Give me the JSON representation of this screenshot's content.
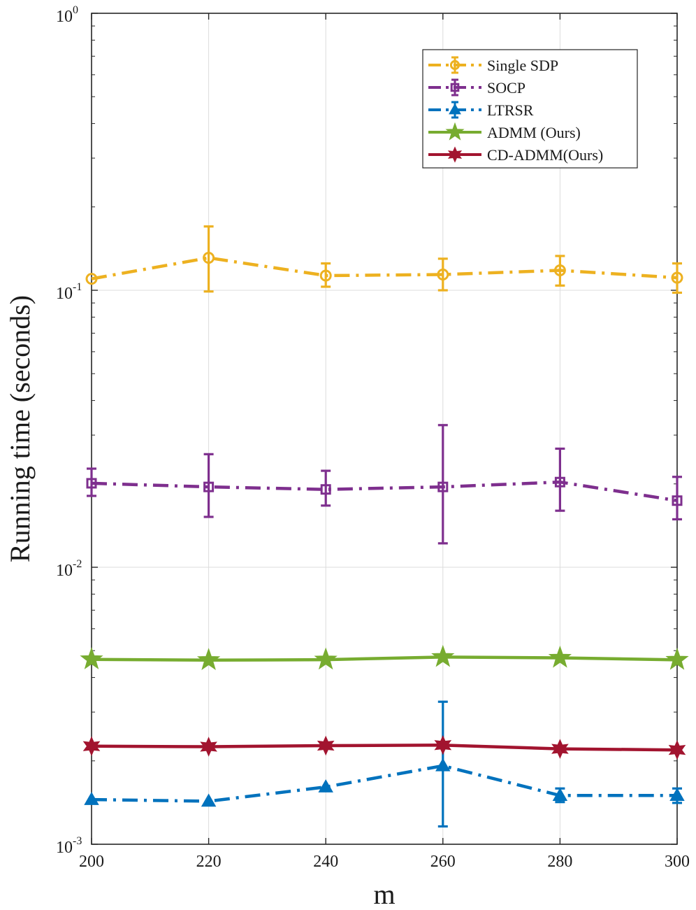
{
  "chart_data": {
    "type": "line",
    "title": "",
    "xlabel": "m",
    "ylabel": "Running time (seconds)",
    "yscale": "log",
    "xlim": [
      200,
      300
    ],
    "ylim": [
      0.001,
      1
    ],
    "x": [
      200,
      220,
      240,
      260,
      280,
      300
    ],
    "x_tick_labels": [
      "200",
      "220",
      "240",
      "260",
      "280",
      "300"
    ],
    "y_ticks": [
      {
        "value": 1,
        "base": "10",
        "exp": "0"
      },
      {
        "value": 0.1,
        "base": "10",
        "exp": "-1"
      },
      {
        "value": 0.01,
        "base": "10",
        "exp": "-2"
      },
      {
        "value": 0.001,
        "base": "10",
        "exp": "-3"
      }
    ],
    "grid": true,
    "legend_position": "top-right",
    "series": [
      {
        "name": "Single SDP",
        "color": "#EDB120",
        "linestyle": "dashdot",
        "marker": "circle",
        "values": [
          0.11,
          0.131,
          0.113,
          0.114,
          0.118,
          0.111
        ],
        "err_low": [
          0.11,
          0.099,
          0.103,
          0.1,
          0.104,
          0.098
        ],
        "err_high": [
          0.11,
          0.17,
          0.125,
          0.13,
          0.133,
          0.125
        ]
      },
      {
        "name": "SOCP",
        "color": "#7E2F8E",
        "linestyle": "dashdot",
        "marker": "square",
        "values": [
          0.0201,
          0.0195,
          0.0191,
          0.0195,
          0.0203,
          0.0174
        ],
        "err_low": [
          0.0181,
          0.0152,
          0.0167,
          0.0122,
          0.016,
          0.0149
        ],
        "err_high": [
          0.0227,
          0.0256,
          0.0223,
          0.0326,
          0.0268,
          0.0212
        ]
      },
      {
        "name": "LTRSR",
        "color": "#0072BD",
        "linestyle": "dashdot",
        "marker": "triangle",
        "values": [
          0.00145,
          0.00143,
          0.00161,
          0.00192,
          0.0015,
          0.0015
        ],
        "err_low": [
          0.00145,
          0.00143,
          0.00161,
          0.00116,
          0.00142,
          0.00141
        ],
        "err_high": [
          0.00145,
          0.00143,
          0.00161,
          0.00327,
          0.00159,
          0.00159
        ]
      },
      {
        "name": "ADMM (Ours)",
        "color": "#77AC30",
        "linestyle": "solid",
        "marker": "star",
        "values": [
          0.00465,
          0.00462,
          0.00464,
          0.00474,
          0.00471,
          0.00463
        ],
        "err_low": [
          0.00465,
          0.00462,
          0.00464,
          0.00474,
          0.00471,
          0.00463
        ],
        "err_high": [
          0.00465,
          0.00462,
          0.00464,
          0.00474,
          0.00471,
          0.00463
        ]
      },
      {
        "name": "CD-ADMM(Ours)",
        "color": "#A2142F",
        "linestyle": "solid",
        "marker": "hexagram",
        "values": [
          0.00226,
          0.00225,
          0.00227,
          0.00228,
          0.00221,
          0.00219
        ],
        "err_low": [
          0.00226,
          0.00225,
          0.00227,
          0.00228,
          0.00221,
          0.00219
        ],
        "err_high": [
          0.00226,
          0.00225,
          0.00227,
          0.00228,
          0.00221,
          0.00219
        ]
      }
    ]
  }
}
